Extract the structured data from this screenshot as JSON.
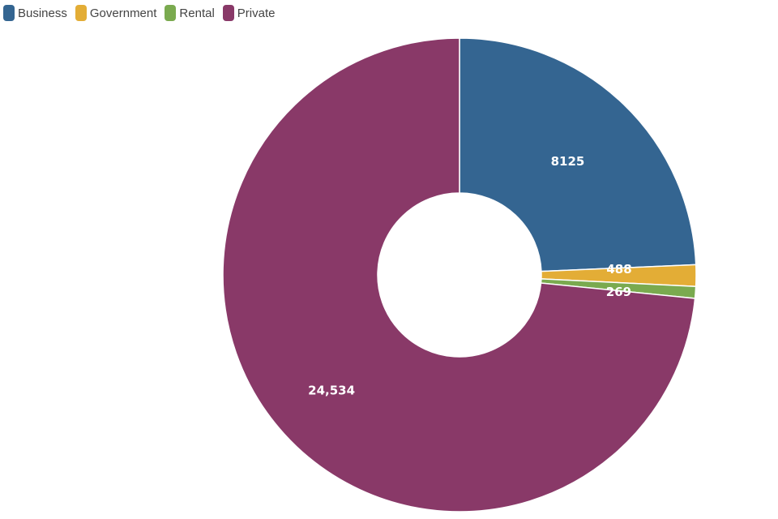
{
  "chart_data": {
    "type": "pie",
    "donut": true,
    "legend_position": "top-left",
    "categories": [
      "Business",
      "Government",
      "Rental",
      "Private"
    ],
    "values": [
      8125,
      488,
      269,
      24534
    ],
    "data_labels": [
      "8125",
      "488",
      "269",
      "24,534"
    ],
    "colors": [
      "#346591",
      "#e3ad36",
      "#7aaa4f",
      "#893968"
    ],
    "legend": [
      {
        "label": "Business",
        "color": "#346591"
      },
      {
        "label": "Government",
        "color": "#e3ad36"
      },
      {
        "label": "Rental",
        "color": "#7aaa4f"
      },
      {
        "label": "Private",
        "color": "#893968"
      }
    ]
  }
}
